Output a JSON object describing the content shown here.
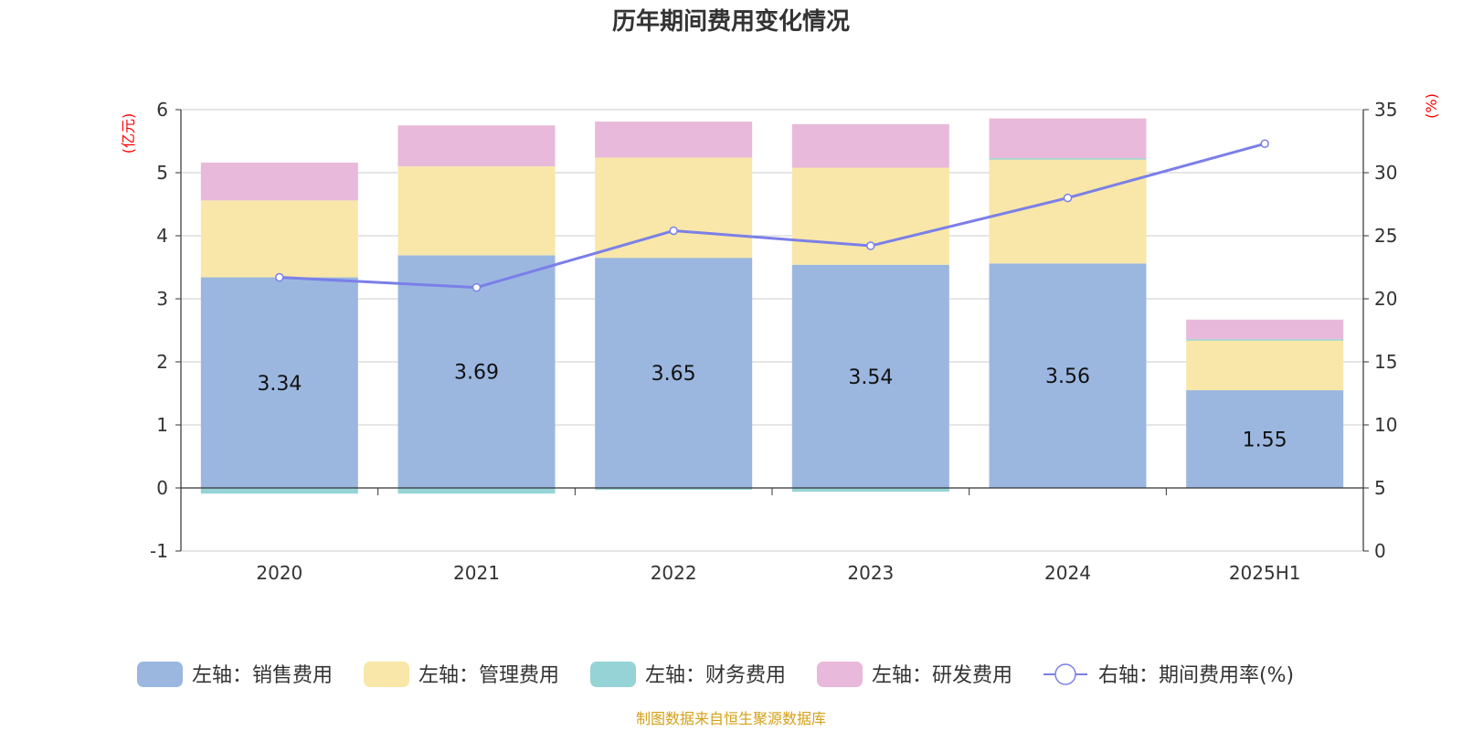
{
  "chart_data": {
    "type": "bar",
    "stacked": true,
    "title": "历年期间费用变化情况",
    "categories": [
      "2020",
      "2021",
      "2022",
      "2023",
      "2024",
      "2025H1"
    ],
    "left_axis": {
      "unit": "(亿元)",
      "range": [
        -1,
        6
      ],
      "ticks": [
        "-1",
        "0",
        "1",
        "2",
        "3",
        "4",
        "5",
        "6"
      ]
    },
    "right_axis": {
      "unit": "(%)",
      "range": [
        0,
        35
      ],
      "ticks": [
        "0",
        "5",
        "10",
        "15",
        "20",
        "25",
        "30",
        "35"
      ]
    },
    "series": [
      {
        "name": "左轴：销售费用",
        "axis": "left",
        "color": "#9bb7e0",
        "values": [
          3.34,
          3.69,
          3.65,
          3.54,
          3.56,
          1.55
        ],
        "labels": [
          "3.34",
          "3.69",
          "3.65",
          "3.54",
          "3.56",
          "1.55"
        ]
      },
      {
        "name": "左轴：管理费用",
        "axis": "left",
        "color": "#f8e7a8",
        "values": [
          1.22,
          1.41,
          1.59,
          1.54,
          1.66,
          0.8
        ]
      },
      {
        "name": "左轴：财务费用",
        "axis": "left",
        "color": "#96d3d6",
        "values": [
          -0.09,
          -0.09,
          -0.03,
          -0.06,
          0.01,
          0.01
        ]
      },
      {
        "name": "左轴：研发费用",
        "axis": "left",
        "color": "#e8b9da",
        "values": [
          0.6,
          0.65,
          0.57,
          0.69,
          0.63,
          0.31
        ]
      },
      {
        "name": "右轴：期间费用率(%)",
        "axis": "right",
        "type": "line",
        "color": "#7b7fe8",
        "values": [
          21.7,
          20.9,
          25.4,
          24.2,
          28.0,
          32.3
        ]
      }
    ],
    "legend_position": "bottom",
    "source": "制图数据来自恒生聚源数据库"
  }
}
